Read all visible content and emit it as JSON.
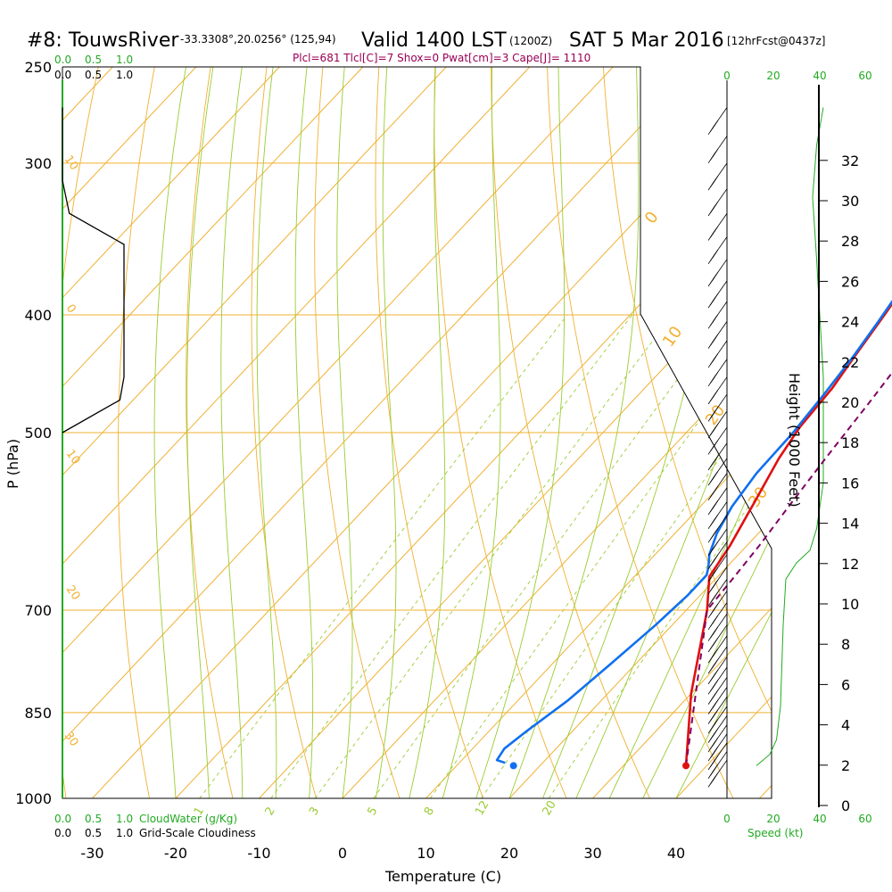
{
  "header": {
    "station": "#8: TouwsRiver",
    "coords": "-33.3308°,20.0256° (125,94)",
    "valid": "Valid 1400 LST",
    "zulu": "(1200Z)",
    "date": "SAT 5 Mar 2016",
    "forecast": "[12hrFcst@0437z]",
    "params": "Plcl=681 Tlcl[C]=7 Shox=0 Pwat[cm]=3 Cape[J]= 1110"
  },
  "colors": {
    "temperature": "#e01010",
    "dewpoint": "#1070f0",
    "parcel": "#800060",
    "isotherm": "#f0b030",
    "dry_adiabat": "#f0b030",
    "moist_adiabat": "#99cc33",
    "mixing_ratio": "#99cc33",
    "cloud_green": "#22aa22"
  },
  "chart_data": {
    "type": "line",
    "title": "",
    "xlabel": "Temperature (C)",
    "ylabel": "P (hPa)",
    "y2label": "Height (1000 Feet)",
    "x_ticks": [
      -30,
      -20,
      -10,
      0,
      10,
      20,
      30,
      40
    ],
    "y_ticks": [
      250,
      300,
      400,
      500,
      700,
      850,
      1000
    ],
    "height_ticks": [
      0,
      2,
      4,
      6,
      8,
      10,
      12,
      14,
      16,
      18,
      20,
      22,
      24,
      26,
      28,
      30,
      32
    ],
    "speed_ticks": [
      0,
      20,
      40,
      60
    ],
    "speed_label": "Speed (kt)",
    "cloud_ticks": [
      "0.0",
      "0.5",
      "1.0"
    ],
    "cloudwater_label": "CloudWater (g/Kg)",
    "cloudiness_label": "Grid-Scale Cloudiness",
    "isotherm_labels": [
      "0",
      "10",
      "20",
      "30"
    ],
    "dry_adiabat_labels": [
      "10",
      "0",
      "10",
      "20",
      "30"
    ],
    "mixing_ratio_labels": [
      "1",
      "2",
      "3",
      "5",
      "8",
      "12",
      "20"
    ],
    "ylim": [
      250,
      1000
    ],
    "series": [
      {
        "name": "Temperature",
        "points": [
          [
            37.5,
            940
          ],
          [
            30,
            820
          ],
          [
            22.5,
            700
          ],
          [
            19,
            657
          ],
          [
            18,
            620
          ],
          [
            16,
            570
          ],
          [
            14,
            525
          ],
          [
            13,
            495
          ],
          [
            12.5,
            460
          ],
          [
            11.5,
            430
          ],
          [
            10.5,
            400
          ],
          [
            9.5,
            375
          ],
          [
            8,
            345
          ],
          [
            7,
            325
          ],
          [
            5,
            305
          ],
          [
            3,
            285
          ],
          [
            2,
            270
          ]
        ]
      },
      {
        "name": "Dewpoint",
        "points": [
          [
            15.5,
            935
          ],
          [
            14.2,
            930
          ],
          [
            13.8,
            910
          ],
          [
            14.5,
            880
          ],
          [
            16,
            830
          ],
          [
            17,
            775
          ],
          [
            18,
            720
          ],
          [
            18.5,
            680
          ],
          [
            18.5,
            655
          ],
          [
            17.8,
            645
          ],
          [
            16.5,
            630
          ],
          [
            15,
            605
          ],
          [
            13.8,
            575
          ],
          [
            13,
            540
          ],
          [
            12.8,
            500
          ],
          [
            12.2,
            465
          ],
          [
            11.5,
            435
          ],
          [
            10.5,
            405
          ],
          [
            9.5,
            380
          ],
          [
            7.5,
            355
          ],
          [
            5,
            330
          ],
          [
            2,
            305
          ],
          [
            0,
            280
          ],
          [
            -2,
            258
          ]
        ]
      },
      {
        "name": "Parcel",
        "points": [
          [
            37.5,
            940
          ],
          [
            22.5,
            700
          ],
          [
            22,
            657
          ],
          [
            21.5,
            620
          ],
          [
            20.5,
            570
          ],
          [
            19.5,
            520
          ],
          [
            18.5,
            470
          ],
          [
            17.5,
            430
          ],
          [
            16.5,
            400
          ],
          [
            14.5,
            360
          ],
          [
            12,
            320
          ],
          [
            10,
            290
          ],
          [
            7,
            262
          ]
        ]
      }
    ],
    "surface_temperature": 37.5,
    "surface_dewpoint": 20.5,
    "surface_pressure": 940,
    "cloudiness_profile": [
      [
        0.0,
        270
      ],
      [
        0.0,
        310
      ],
      [
        0.05,
        330
      ],
      [
        0.45,
        350
      ],
      [
        0.45,
        450
      ],
      [
        0.42,
        470
      ],
      [
        0.0,
        500
      ]
    ],
    "height_curve": [
      [
        0.0,
        940
      ],
      [
        0.05,
        930
      ],
      [
        0.1,
        920
      ],
      [
        0.15,
        895
      ],
      [
        0.18,
        840
      ],
      [
        0.2,
        720
      ],
      [
        0.22,
        660
      ],
      [
        0.3,
        640
      ],
      [
        0.4,
        625
      ],
      [
        0.45,
        600
      ],
      [
        0.5,
        550
      ],
      [
        0.5,
        450
      ],
      [
        0.45,
        360
      ],
      [
        0.42,
        320
      ],
      [
        0.45,
        290
      ],
      [
        0.5,
        270
      ]
    ]
  }
}
